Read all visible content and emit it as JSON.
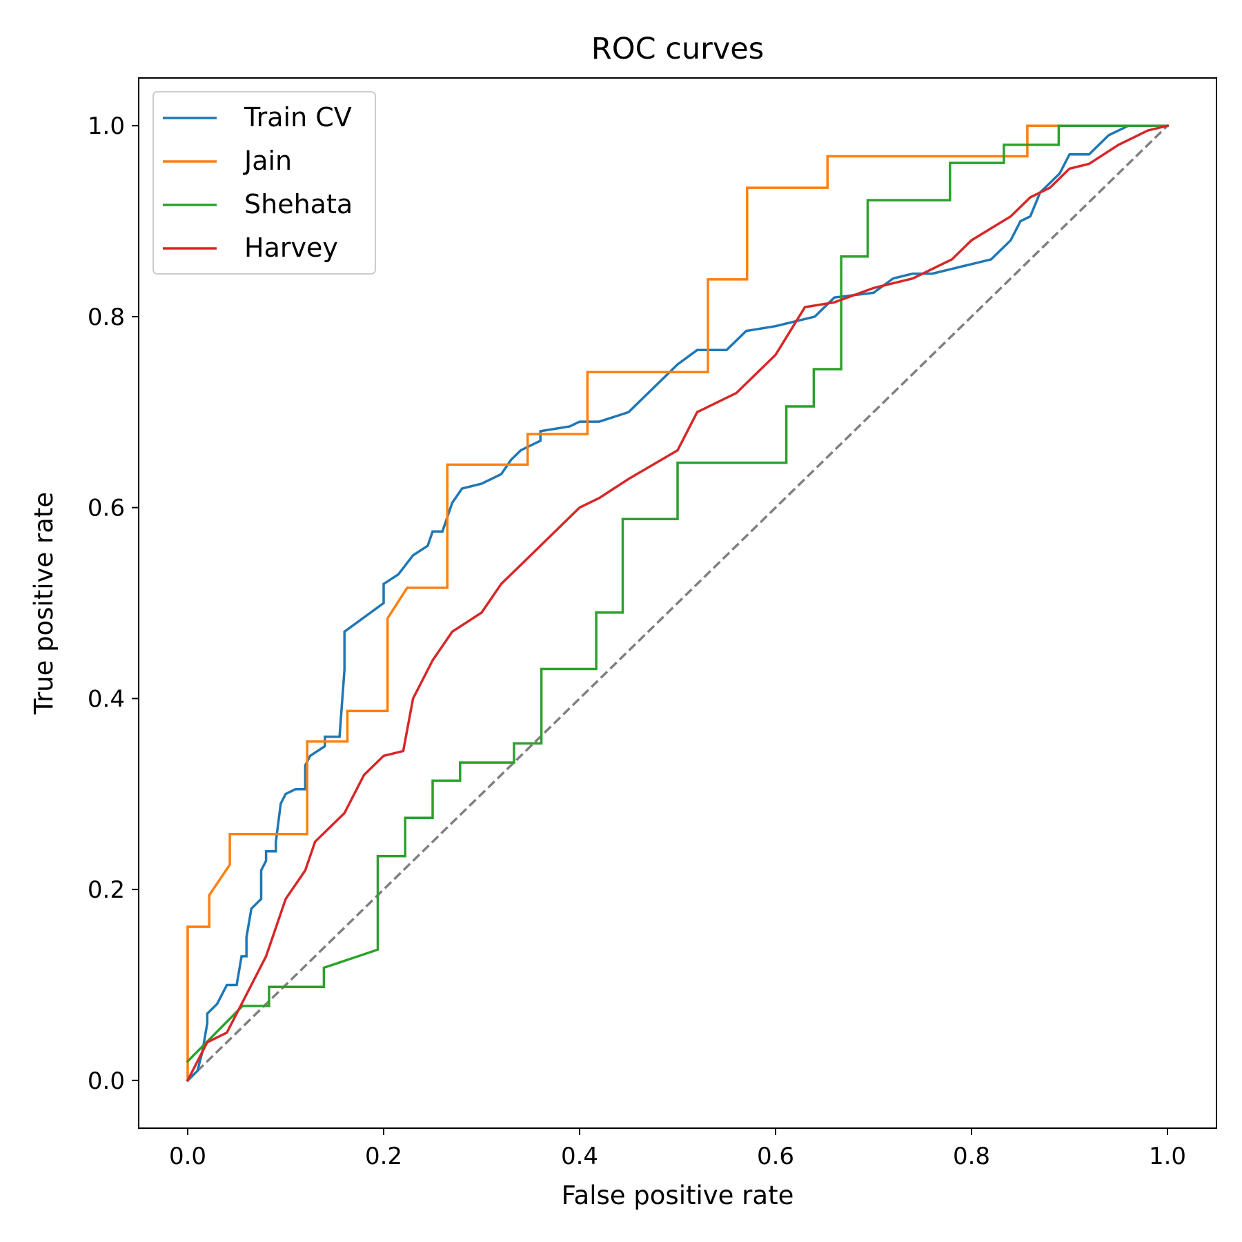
{
  "chart_data": {
    "type": "line",
    "title": "ROC curves",
    "xlabel": "False positive rate",
    "ylabel": "True positive rate",
    "xlim": [
      -0.05,
      1.05
    ],
    "ylim": [
      -0.05,
      1.05
    ],
    "xticks": [
      0.0,
      0.2,
      0.4,
      0.6,
      0.8,
      1.0
    ],
    "yticks": [
      0.0,
      0.2,
      0.4,
      0.6,
      0.8,
      1.0
    ],
    "xtick_labels": [
      "0.0",
      "0.2",
      "0.4",
      "0.6",
      "0.8",
      "1.0"
    ],
    "ytick_labels": [
      "0.0",
      "0.2",
      "0.4",
      "0.6",
      "0.8",
      "1.0"
    ],
    "grid": false,
    "legend_position": "top-left",
    "diagonal": {
      "x": [
        0,
        1
      ],
      "y": [
        0,
        1
      ],
      "color": "#808080",
      "style": "dashed"
    },
    "series": [
      {
        "name": "Train CV",
        "color": "#1f77b4",
        "x": [
          0,
          0.01,
          0.015,
          0.02,
          0.02,
          0.03,
          0.035,
          0.04,
          0.05,
          0.055,
          0.06,
          0.06,
          0.065,
          0.075,
          0.075,
          0.08,
          0.08,
          0.09,
          0.09,
          0.095,
          0.1,
          0.1,
          0.11,
          0.12,
          0.12,
          0.125,
          0.125,
          0.14,
          0.14,
          0.155,
          0.16,
          0.16,
          0.2,
          0.2,
          0.215,
          0.23,
          0.245,
          0.25,
          0.26,
          0.27,
          0.28,
          0.3,
          0.32,
          0.33,
          0.34,
          0.36,
          0.36,
          0.39,
          0.4,
          0.42,
          0.45,
          0.5,
          0.52,
          0.55,
          0.57,
          0.6,
          0.64,
          0.66,
          0.7,
          0.72,
          0.74,
          0.76,
          0.78,
          0.8,
          0.82,
          0.84,
          0.85,
          0.86,
          0.87,
          0.89,
          0.9,
          0.92,
          0.94,
          0.96,
          0.98,
          1.0
        ],
        "y": [
          0,
          0.01,
          0.03,
          0.06,
          0.07,
          0.08,
          0.09,
          0.1,
          0.1,
          0.13,
          0.13,
          0.15,
          0.18,
          0.19,
          0.22,
          0.23,
          0.24,
          0.24,
          0.25,
          0.29,
          0.3,
          0.3,
          0.305,
          0.305,
          0.33,
          0.34,
          0.34,
          0.35,
          0.36,
          0.36,
          0.43,
          0.47,
          0.5,
          0.52,
          0.53,
          0.55,
          0.56,
          0.575,
          0.575,
          0.605,
          0.62,
          0.625,
          0.635,
          0.65,
          0.66,
          0.67,
          0.68,
          0.685,
          0.69,
          0.69,
          0.7,
          0.75,
          0.765,
          0.765,
          0.785,
          0.79,
          0.8,
          0.82,
          0.825,
          0.84,
          0.845,
          0.845,
          0.85,
          0.855,
          0.86,
          0.88,
          0.9,
          0.905,
          0.93,
          0.95,
          0.97,
          0.97,
          0.99,
          1.0,
          1.0,
          1.0
        ]
      },
      {
        "name": "Jain",
        "color": "#ff7f0e",
        "x": [
          0,
          0,
          0.022,
          0.022,
          0.043,
          0.043,
          0.122,
          0.122,
          0.163,
          0.163,
          0.204,
          0.204,
          0.224,
          0.265,
          0.265,
          0.347,
          0.347,
          0.408,
          0.408,
          0.531,
          0.531,
          0.571,
          0.571,
          0.653,
          0.653,
          0.857,
          0.857,
          1.0
        ],
        "y": [
          0,
          0.161,
          0.161,
          0.194,
          0.226,
          0.258,
          0.258,
          0.355,
          0.355,
          0.387,
          0.387,
          0.484,
          0.516,
          0.516,
          0.645,
          0.645,
          0.677,
          0.677,
          0.742,
          0.742,
          0.839,
          0.839,
          0.935,
          0.935,
          0.968,
          0.968,
          1.0,
          1.0
        ]
      },
      {
        "name": "Shehata",
        "color": "#2ca02c",
        "x": [
          0,
          0.056,
          0.083,
          0.083,
          0.139,
          0.139,
          0.194,
          0.194,
          0.222,
          0.222,
          0.25,
          0.25,
          0.278,
          0.278,
          0.333,
          0.333,
          0.361,
          0.361,
          0.417,
          0.417,
          0.444,
          0.444,
          0.5,
          0.5,
          0.611,
          0.611,
          0.639,
          0.639,
          0.667,
          0.667,
          0.694,
          0.694,
          0.778,
          0.778,
          0.833,
          0.833,
          0.889,
          0.889,
          1.0
        ],
        "y": [
          0.02,
          0.078,
          0.078,
          0.098,
          0.098,
          0.118,
          0.137,
          0.235,
          0.235,
          0.275,
          0.275,
          0.314,
          0.314,
          0.333,
          0.333,
          0.353,
          0.353,
          0.431,
          0.431,
          0.49,
          0.49,
          0.588,
          0.588,
          0.647,
          0.647,
          0.706,
          0.706,
          0.745,
          0.745,
          0.863,
          0.863,
          0.922,
          0.922,
          0.961,
          0.961,
          0.98,
          0.98,
          1.0,
          1.0
        ]
      },
      {
        "name": "Harvey",
        "color": "#d62728",
        "x": [
          0,
          0.02,
          0.04,
          0.06,
          0.08,
          0.09,
          0.1,
          0.12,
          0.13,
          0.16,
          0.18,
          0.2,
          0.22,
          0.23,
          0.25,
          0.27,
          0.3,
          0.32,
          0.34,
          0.37,
          0.4,
          0.42,
          0.45,
          0.5,
          0.52,
          0.56,
          0.6,
          0.63,
          0.66,
          0.7,
          0.74,
          0.78,
          0.8,
          0.84,
          0.86,
          0.88,
          0.9,
          0.92,
          0.95,
          0.98,
          1.0
        ],
        "y": [
          0,
          0.04,
          0.05,
          0.09,
          0.13,
          0.16,
          0.19,
          0.22,
          0.25,
          0.28,
          0.32,
          0.34,
          0.345,
          0.4,
          0.44,
          0.47,
          0.49,
          0.52,
          0.54,
          0.57,
          0.6,
          0.61,
          0.63,
          0.66,
          0.7,
          0.72,
          0.76,
          0.81,
          0.815,
          0.83,
          0.84,
          0.86,
          0.88,
          0.905,
          0.925,
          0.935,
          0.955,
          0.96,
          0.98,
          0.995,
          1.0
        ]
      }
    ]
  }
}
